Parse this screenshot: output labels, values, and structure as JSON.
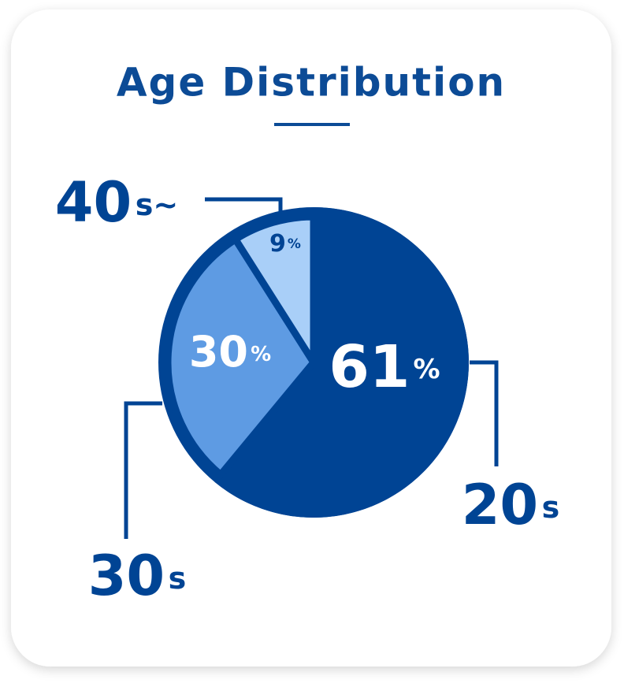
{
  "chart_data": {
    "type": "pie",
    "title": "Age Distribution",
    "categories": [
      "20s",
      "30s",
      "40s~"
    ],
    "values": [
      61,
      30,
      9
    ],
    "value_labels": [
      "61%",
      "30%",
      "9%"
    ],
    "colors": [
      "#004494",
      "#5e9be3",
      "#a9cff8"
    ]
  }
}
